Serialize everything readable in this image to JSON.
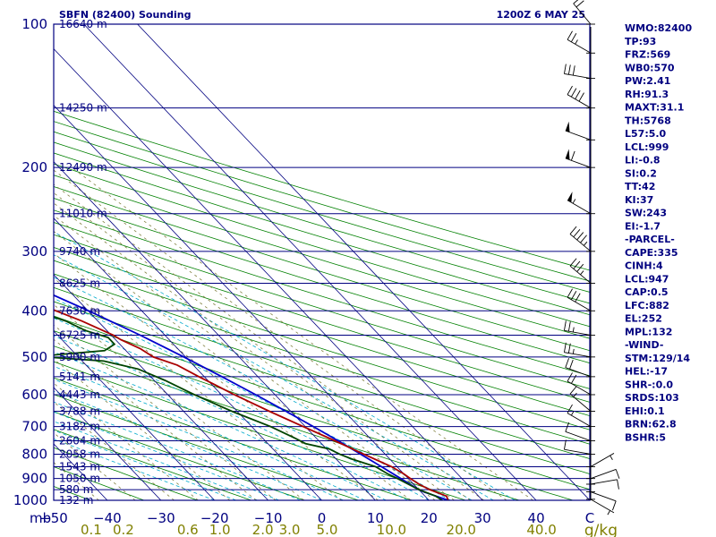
{
  "header": {
    "station_title": "SBFN (82400) Sounding",
    "time_title": "1200Z  6 MAY 25"
  },
  "indices": [
    "WMO:82400",
    "TP:93",
    "FRZ:569",
    "WB0:570",
    "PW:2.41",
    "RH:91.3",
    "MAXT:31.1",
    "TH:5768",
    "L57:5.0",
    "LCL:999",
    "LI:-0.8",
    "SI:0.2",
    "TT:42",
    "KI:37",
    "SW:243",
    "EI:-1.7",
    "-PARCEL-",
    "CAPE:335",
    "CINH:4",
    "LCL:947",
    "CAP:0.5",
    "LFC:882",
    "EL:252",
    "MPL:132",
    "-WIND-",
    "STM:129/14",
    "HEL:-17",
    "SHR-:0.0",
    "SRDS:103",
    "EHI:0.1",
    "BRN:62.8",
    "BSHR:5"
  ],
  "colors": {
    "isobar": "#000080",
    "isotherm": "#000080",
    "dry_adiabat": "#008000",
    "moist_adiabat": "#00aacc",
    "mixing_ratio": "#808040",
    "temperature": "#aa0000",
    "dewpoint": "#004400",
    "parcel": "#0000cc",
    "text": "#000080",
    "mixing_label": "#808000"
  },
  "chart_data": {
    "type": "line",
    "chart_kind": "skew-T log-P sounding",
    "y_scale": "log",
    "ylim_hpa": [
      1000,
      100
    ],
    "xlim_c": [
      -50,
      50
    ],
    "pressure_ticks": [
      "100",
      "200",
      "300",
      "400",
      "500",
      "600",
      "700",
      "800",
      "900",
      "1000"
    ],
    "pressure_tick_values": [
      100,
      200,
      300,
      400,
      500,
      600,
      700,
      800,
      900,
      1000
    ],
    "height_labels": [
      {
        "p": 100,
        "label": "16640 m"
      },
      {
        "p": 150,
        "label": "14250 m"
      },
      {
        "p": 200,
        "label": "12490 m"
      },
      {
        "p": 250,
        "label": "11010 m"
      },
      {
        "p": 300,
        "label": "9740 m"
      },
      {
        "p": 350,
        "label": "8625 m"
      },
      {
        "p": 400,
        "label": "7630 m"
      },
      {
        "p": 450,
        "label": "6725 m"
      },
      {
        "p": 500,
        "label": "5900 m"
      },
      {
        "p": 550,
        "label": "5141 m"
      },
      {
        "p": 600,
        "label": "4443 m"
      },
      {
        "p": 650,
        "label": "3788 m"
      },
      {
        "p": 700,
        "label": "3182 m"
      },
      {
        "p": 750,
        "label": "2604 m"
      },
      {
        "p": 800,
        "label": "2058 m"
      },
      {
        "p": 850,
        "label": "1543 m"
      },
      {
        "p": 900,
        "label": "1050 m"
      },
      {
        "p": 950,
        "label": "580 m"
      },
      {
        "p": 1000,
        "label": "132 m"
      }
    ],
    "temp_axis_label": "mb",
    "temp_ticks": [
      "−50",
      "−40",
      "−30",
      "−20",
      "−10",
      "0",
      "10",
      "20",
      "30",
      "40",
      "C"
    ],
    "temp_tick_values": [
      -50,
      -40,
      -30,
      -20,
      -10,
      0,
      10,
      20,
      30,
      40,
      50
    ],
    "mixing_ratio_ticks": [
      {
        "label": "0.1",
        "t": -43
      },
      {
        "label": "0.2",
        "t": -37
      },
      {
        "label": "0.6",
        "t": -25
      },
      {
        "label": "1.0",
        "t": -19
      },
      {
        "label": "2.0",
        "t": -11
      },
      {
        "label": "3.0",
        "t": -6
      },
      {
        "label": "5.0",
        "t": 1
      },
      {
        "label": "10.0",
        "t": 13
      },
      {
        "label": "20.0",
        "t": 26
      },
      {
        "label": "40.0",
        "t": 41
      }
    ],
    "mixing_ratio_unit": "g/kg",
    "series": [
      {
        "key": "temperature",
        "points": [
          [
            1000,
            23.6
          ],
          [
            980,
            24
          ],
          [
            950,
            22
          ],
          [
            925,
            21
          ],
          [
            900,
            20.4
          ],
          [
            880,
            20
          ],
          [
            850,
            19
          ],
          [
            800,
            16
          ],
          [
            750,
            13
          ],
          [
            700,
            9.6
          ],
          [
            650,
            6
          ],
          [
            600,
            2.4
          ],
          [
            570,
            0.4
          ],
          [
            550,
            -1
          ],
          [
            520,
            -3
          ],
          [
            500,
            -6
          ],
          [
            480,
            -7
          ],
          [
            460,
            -9
          ],
          [
            450,
            -9.6
          ],
          [
            420,
            -13
          ],
          [
            400,
            -16
          ],
          [
            350,
            -23
          ],
          [
            300,
            -32
          ],
          [
            250,
            -42.5
          ],
          [
            200,
            -54
          ],
          [
            175,
            -61
          ],
          [
            150,
            -69
          ],
          [
            130,
            -70
          ],
          [
            110,
            -70
          ],
          [
            100,
            -71
          ]
        ]
      },
      {
        "key": "dewpoint",
        "points": [
          [
            1000,
            22.5
          ],
          [
            980,
            22
          ],
          [
            950,
            20
          ],
          [
            925,
            19
          ],
          [
            900,
            18
          ],
          [
            880,
            17
          ],
          [
            850,
            16
          ],
          [
            820,
            13
          ],
          [
            800,
            11.5
          ],
          [
            780,
            10.5
          ],
          [
            760,
            7
          ],
          [
            740,
            6
          ],
          [
            700,
            3.5
          ],
          [
            650,
            -1
          ],
          [
            600,
            -5
          ],
          [
            560,
            -8
          ],
          [
            530,
            -11
          ],
          [
            510,
            -16
          ],
          [
            500,
            -26
          ],
          [
            495,
            -24
          ],
          [
            485,
            -14
          ],
          [
            470,
            -11
          ],
          [
            455,
            -11
          ],
          [
            440,
            -14
          ],
          [
            420,
            -16
          ],
          [
            400,
            -20
          ],
          [
            380,
            -20.5
          ],
          [
            360,
            -24
          ],
          [
            350,
            -22.5
          ],
          [
            340,
            -24
          ],
          [
            330,
            -25
          ],
          [
            315,
            -26.5
          ],
          [
            300,
            -29
          ],
          [
            290,
            -34
          ],
          [
            260,
            -44
          ],
          [
            230,
            -51
          ],
          [
            200,
            -60
          ],
          [
            170,
            -70
          ],
          [
            150,
            -75
          ],
          [
            140,
            -77
          ],
          [
            130,
            -79
          ],
          [
            120,
            -80
          ],
          [
            100,
            -84
          ]
        ]
      },
      {
        "key": "parcel",
        "points": [
          [
            1000,
            23.6
          ],
          [
            960,
            20.5
          ],
          [
            947,
            19.9
          ],
          [
            900,
            18.6
          ],
          [
            850,
            17.1
          ],
          [
            800,
            15.4
          ],
          [
            750,
            13.6
          ],
          [
            700,
            11.5
          ],
          [
            650,
            9.1
          ],
          [
            600,
            6.4
          ],
          [
            550,
            3.3
          ],
          [
            500,
            -0.3
          ],
          [
            450,
            -4.6
          ],
          [
            400,
            -9.9
          ],
          [
            350,
            -16.6
          ],
          [
            300,
            -25.1
          ],
          [
            252,
            -35.6
          ],
          [
            200,
            -52.5
          ],
          [
            150,
            -66
          ],
          [
            120,
            -74
          ],
          [
            100,
            -79
          ]
        ]
      }
    ],
    "wind_barbs": [
      {
        "p": 995,
        "dir": 120,
        "kt": 5
      },
      {
        "p": 960,
        "dir": 110,
        "kt": 10
      },
      {
        "p": 925,
        "dir": 80,
        "kt": 10
      },
      {
        "p": 900,
        "dir": 70,
        "kt": 10
      },
      {
        "p": 850,
        "dir": 60,
        "kt": 5
      },
      {
        "p": 800,
        "dir": 280,
        "kt": 10
      },
      {
        "p": 750,
        "dir": 290,
        "kt": 10
      },
      {
        "p": 700,
        "dir": 300,
        "kt": 15
      },
      {
        "p": 650,
        "dir": 310,
        "kt": 15
      },
      {
        "p": 600,
        "dir": 300,
        "kt": 20
      },
      {
        "p": 550,
        "dir": 290,
        "kt": 20
      },
      {
        "p": 500,
        "dir": 280,
        "kt": 25
      },
      {
        "p": 450,
        "dir": 280,
        "kt": 25
      },
      {
        "p": 400,
        "dir": 300,
        "kt": 30
      },
      {
        "p": 350,
        "dir": 310,
        "kt": 35
      },
      {
        "p": 300,
        "dir": 310,
        "kt": 45
      },
      {
        "p": 250,
        "dir": 300,
        "kt": 55
      },
      {
        "p": 200,
        "dir": 290,
        "kt": 60
      },
      {
        "p": 175,
        "dir": 290,
        "kt": 50
      },
      {
        "p": 150,
        "dir": 300,
        "kt": 40
      },
      {
        "p": 130,
        "dir": 280,
        "kt": 30
      },
      {
        "p": 115,
        "dir": 300,
        "kt": 25
      },
      {
        "p": 100,
        "dir": 320,
        "kt": 20
      }
    ]
  }
}
